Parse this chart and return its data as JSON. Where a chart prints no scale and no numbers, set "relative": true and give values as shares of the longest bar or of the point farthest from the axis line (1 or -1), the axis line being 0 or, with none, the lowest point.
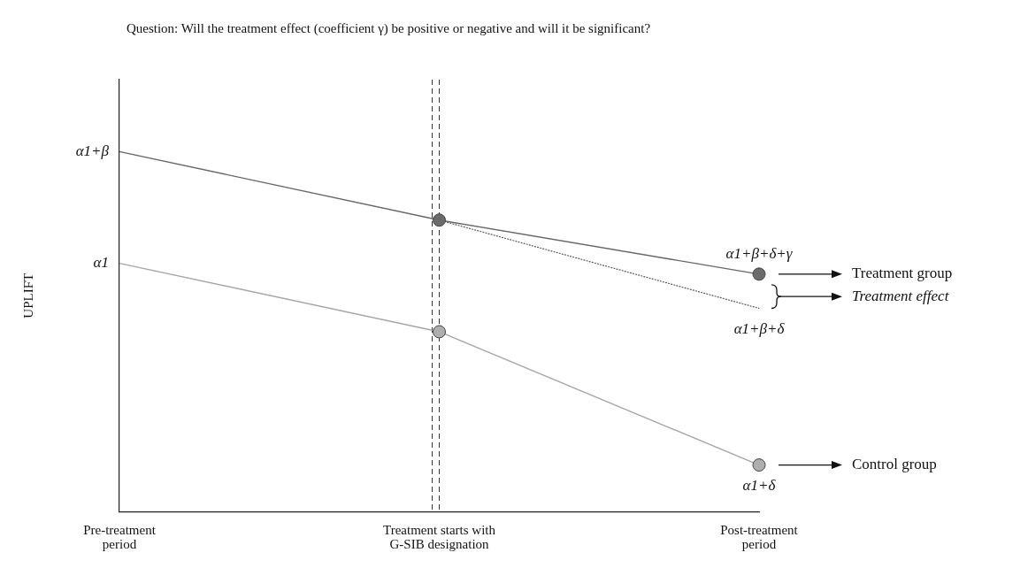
{
  "chart_data": {
    "type": "line",
    "title": "Question: Will the treatment effect (coefficient γ) be positive or negative and will it be significant?",
    "ylabel": "UPLIFT",
    "categories": [
      "Pre-treatment period",
      "Treatment starts with G-SIB designation",
      "Post-treatment period"
    ],
    "relative": true,
    "marker": "circle",
    "series": [
      {
        "name": "Treatment group",
        "color": "#666666",
        "values": [
          1,
          0.81,
          0.66
        ]
      },
      {
        "name": "Control group",
        "color": "#a6a6a6",
        "values": [
          0.69,
          0.5,
          0.13
        ]
      },
      {
        "color": "#555555",
        "line_style": "dotted",
        "marker": "none",
        "values": [
          null,
          0.81,
          0.565
        ]
      }
    ],
    "ref_lines": [
      {
        "axis": "x",
        "value": "Treatment starts with G-SIB designation",
        "line_style": "dashed",
        "color": "#333333"
      }
    ],
    "annotations": [
      {
        "text": "α1+β",
        "x": "Pre-treatment period",
        "y": 1
      },
      {
        "text": "α1",
        "x": "Pre-treatment period",
        "y": 0.69
      },
      {
        "text": "α1+β+δ+γ",
        "x": "Post-treatment period",
        "y": 0.66
      },
      {
        "text": "α1+β+δ",
        "x": "Post-treatment period",
        "y": 0.565
      },
      {
        "text": "α1+δ",
        "x": "Post-treatment period",
        "y": 0.13
      },
      "Treatment effect"
    ]
  }
}
